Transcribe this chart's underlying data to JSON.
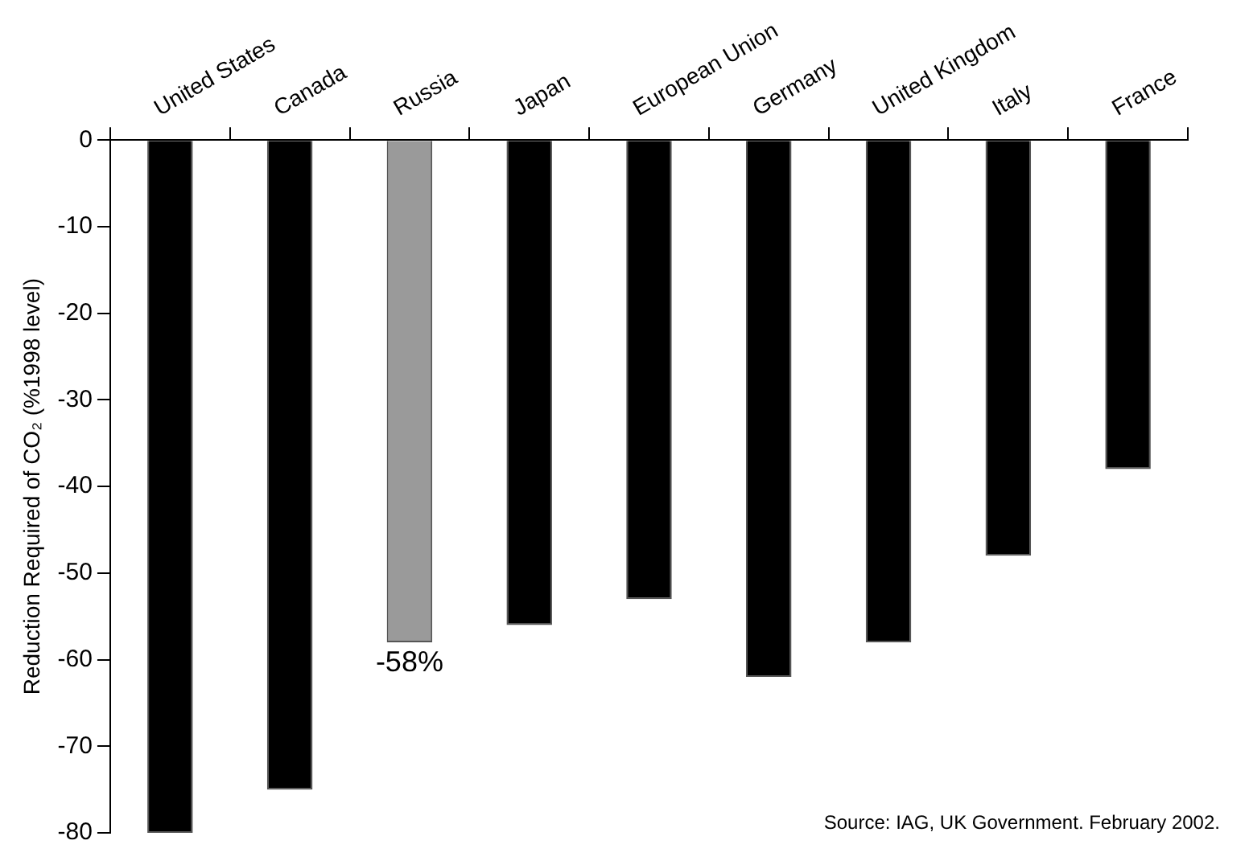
{
  "chart_data": {
    "type": "bar",
    "ylabel": "Reduction Required of CO₂ (%1998 level)",
    "categories": [
      "United States",
      "Canada",
      "Russia",
      "Japan",
      "European Union",
      "Germany",
      "United Kingdom",
      "Italy",
      "France"
    ],
    "values": [
      -80,
      -75,
      -58,
      -56,
      -53,
      -62,
      -58,
      -48,
      -38
    ],
    "colors": [
      "#000000",
      "#000000",
      "#9a9a9a",
      "#000000",
      "#000000",
      "#000000",
      "#000000",
      "#000000",
      "#000000"
    ],
    "value_labels": [
      null,
      null,
      "-58%",
      null,
      null,
      null,
      null,
      null,
      null
    ],
    "ylim": [
      -80,
      0
    ],
    "yticks": [
      0,
      -10,
      -20,
      -30,
      -40,
      -50,
      -60,
      -70,
      -80
    ],
    "grid": false,
    "legend": false,
    "annotations": [
      "Source: IAG, UK Government. February 2002."
    ]
  }
}
